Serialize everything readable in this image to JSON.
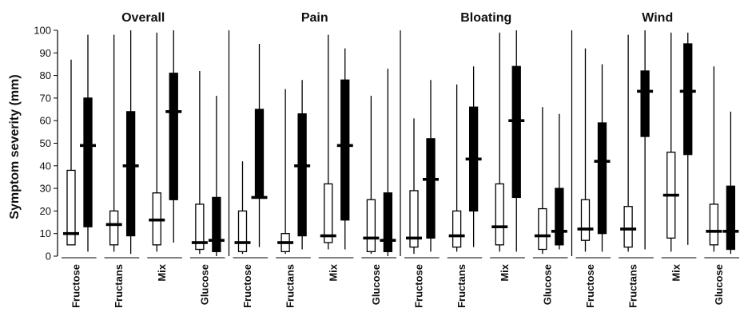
{
  "chart_data": {
    "type": "boxplot",
    "ylabel": "Symptom severity (mm)",
    "ylim": [
      0,
      100
    ],
    "yticks": [
      0,
      10,
      20,
      30,
      40,
      50,
      60,
      70,
      80,
      90,
      100
    ],
    "categories": [
      "Fructose",
      "Fructans",
      "Mix",
      "Glucose"
    ],
    "panels": [
      {
        "title": "Overall",
        "groups": [
          {
            "category": "Fructose",
            "open": {
              "min": 5,
              "q1": 5,
              "median": 10,
              "q3": 38,
              "max": 87
            },
            "filled": {
              "min": 2,
              "q1": 13,
              "median": 49,
              "q3": 70,
              "max": 98
            }
          },
          {
            "category": "Fructans",
            "open": {
              "min": 2,
              "q1": 5,
              "median": 14,
              "q3": 20,
              "max": 98
            },
            "filled": {
              "min": 1,
              "q1": 9,
              "median": 40,
              "q3": 64,
              "max": 100
            }
          },
          {
            "category": "Mix",
            "open": {
              "min": 2,
              "q1": 5,
              "median": 16,
              "q3": 28,
              "max": 99
            },
            "filled": {
              "min": 6,
              "q1": 25,
              "median": 64,
              "q3": 81,
              "max": 100
            }
          },
          {
            "category": "Glucose",
            "open": {
              "min": 1,
              "q1": 3,
              "median": 6,
              "q3": 23,
              "max": 82
            },
            "filled": {
              "min": 0,
              "q1": 2,
              "median": 7,
              "q3": 26,
              "max": 71
            }
          }
        ]
      },
      {
        "title": "Pain",
        "groups": [
          {
            "category": "Fructose",
            "open": {
              "min": 1,
              "q1": 2,
              "median": 6,
              "q3": 20,
              "max": 42
            },
            "filled": {
              "min": 4,
              "q1": 26,
              "median": 26,
              "q3": 65,
              "max": 94
            }
          },
          {
            "category": "Fructans",
            "open": {
              "min": 1,
              "q1": 2,
              "median": 6,
              "q3": 10,
              "max": 74
            },
            "filled": {
              "min": 3,
              "q1": 9,
              "median": 40,
              "q3": 63,
              "max": 78
            }
          },
          {
            "category": "Mix",
            "open": {
              "min": 3,
              "q1": 6,
              "median": 9,
              "q3": 32,
              "max": 98
            },
            "filled": {
              "min": 3,
              "q1": 16,
              "median": 49,
              "q3": 78,
              "max": 92
            }
          },
          {
            "category": "Glucose",
            "open": {
              "min": 1,
              "q1": 2,
              "median": 8,
              "q3": 25,
              "max": 71
            },
            "filled": {
              "min": 0,
              "q1": 2,
              "median": 7,
              "q3": 28,
              "max": 83
            }
          }
        ]
      },
      {
        "title": "Bloating",
        "groups": [
          {
            "category": "Fructose",
            "open": {
              "min": 1,
              "q1": 4,
              "median": 8,
              "q3": 29,
              "max": 61
            },
            "filled": {
              "min": 2,
              "q1": 8,
              "median": 34,
              "q3": 52,
              "max": 78
            }
          },
          {
            "category": "Fructans",
            "open": {
              "min": 2,
              "q1": 4,
              "median": 9,
              "q3": 20,
              "max": 76
            },
            "filled": {
              "min": 4,
              "q1": 20,
              "median": 43,
              "q3": 66,
              "max": 84
            }
          },
          {
            "category": "Mix",
            "open": {
              "min": 2,
              "q1": 5,
              "median": 13,
              "q3": 32,
              "max": 99
            },
            "filled": {
              "min": 2,
              "q1": 26,
              "median": 60,
              "q3": 84,
              "max": 100
            }
          },
          {
            "category": "Glucose",
            "open": {
              "min": 1,
              "q1": 3,
              "median": 9,
              "q3": 21,
              "max": 66
            },
            "filled": {
              "min": 3,
              "q1": 5,
              "median": 11,
              "q3": 30,
              "max": 63
            }
          }
        ]
      },
      {
        "title": "Wind",
        "groups": [
          {
            "category": "Fructose",
            "open": {
              "min": 2,
              "q1": 7,
              "median": 12,
              "q3": 25,
              "max": 92
            },
            "filled": {
              "min": 2,
              "q1": 10,
              "median": 42,
              "q3": 59,
              "max": 85
            }
          },
          {
            "category": "Fructans",
            "open": {
              "min": 2,
              "q1": 4,
              "median": 12,
              "q3": 22,
              "max": 98
            },
            "filled": {
              "min": 3,
              "q1": 53,
              "median": 73,
              "q3": 82,
              "max": 100
            }
          },
          {
            "category": "Mix",
            "open": {
              "min": 2,
              "q1": 8,
              "median": 27,
              "q3": 46,
              "max": 99
            },
            "filled": {
              "min": 5,
              "q1": 45,
              "median": 73,
              "q3": 94,
              "max": 99
            }
          },
          {
            "category": "Glucose",
            "open": {
              "min": 2,
              "q1": 5,
              "median": 11,
              "q3": 23,
              "max": 84
            },
            "filled": {
              "min": 1,
              "q1": 3,
              "median": 11,
              "q3": 31,
              "max": 64
            }
          }
        ]
      }
    ],
    "colors": {
      "open_fill": "#ffffff",
      "filled_fill": "#000000",
      "stroke": "#000000"
    },
    "grid": false
  }
}
